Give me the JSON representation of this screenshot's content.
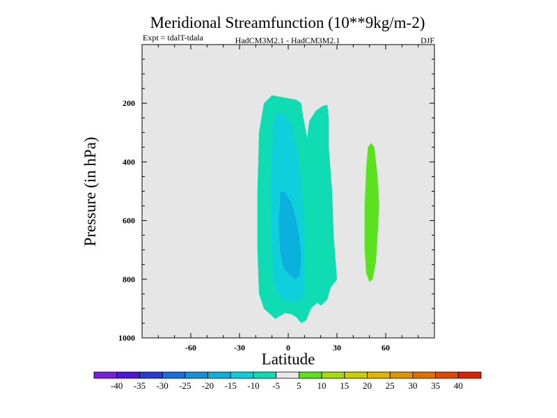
{
  "chart_data": {
    "type": "contour",
    "title": "Meridional Streamfunction (10**9kg/m-2)",
    "subtitle_left": "Expt = tdalT-tdala",
    "subtitle_center": "HadCM3M2.1 - HadCM3M2.1",
    "subtitle_right": "DJF",
    "xlabel": "Latitude",
    "ylabel": "Pressure (in hPa)",
    "xlim": [
      -90,
      90
    ],
    "ylim": [
      1000,
      0
    ],
    "xticks": [
      -60,
      -30,
      0,
      30,
      60
    ],
    "yticks": [
      200,
      400,
      600,
      800,
      1000
    ],
    "background": "#e6e6e6",
    "colorbar": {
      "labels": [
        "-40",
        "-35",
        "-30",
        "-25",
        "-20",
        "-15",
        "-10",
        "-5",
        "5",
        "10",
        "15",
        "20",
        "25",
        "30",
        "35",
        "40"
      ],
      "colors": [
        "#7a1ee0",
        "#4a18d8",
        "#2a3ad8",
        "#1a6edc",
        "#1490dc",
        "#0cb0dc",
        "#10cfdc",
        "#10dcb4",
        "#e8e8e8",
        "#5ae21e",
        "#a0dc10",
        "#cccc00",
        "#e0b400",
        "#e09400",
        "#e07000",
        "#e04800",
        "#dc2000"
      ]
    },
    "regions": [
      {
        "level": "-10 to -5",
        "color": "#10dcb4",
        "points": [
          [
            -10,
            173
          ],
          [
            -5,
            178
          ],
          [
            5,
            188
          ],
          [
            8,
            200
          ],
          [
            9,
            240
          ],
          [
            10,
            270
          ],
          [
            11,
            300
          ],
          [
            12,
            320
          ],
          [
            12,
            300
          ],
          [
            13,
            260
          ],
          [
            17,
            225
          ],
          [
            21,
            210
          ],
          [
            24,
            205
          ],
          [
            25,
            250
          ],
          [
            25,
            350
          ],
          [
            27,
            500
          ],
          [
            28,
            650
          ],
          [
            30,
            800
          ],
          [
            26,
            830
          ],
          [
            24,
            870
          ],
          [
            20,
            890
          ],
          [
            18,
            880
          ],
          [
            14,
            900
          ],
          [
            11,
            940
          ],
          [
            8,
            950
          ],
          [
            5,
            930
          ],
          [
            2,
            920
          ],
          [
            -2,
            915
          ],
          [
            -8,
            935
          ],
          [
            -15,
            900
          ],
          [
            -18,
            850
          ],
          [
            -19,
            700
          ],
          [
            -19,
            500
          ],
          [
            -18,
            300
          ],
          [
            -15,
            200
          ]
        ]
      },
      {
        "level": "-15 to -10",
        "color": "#10cfdc",
        "points": [
          [
            -7,
            230
          ],
          [
            -2,
            240
          ],
          [
            2,
            270
          ],
          [
            5,
            350
          ],
          [
            8,
            450
          ],
          [
            9,
            550
          ],
          [
            10,
            650
          ],
          [
            10,
            750
          ],
          [
            10,
            850
          ],
          [
            6,
            880
          ],
          [
            0,
            875
          ],
          [
            -5,
            860
          ],
          [
            -9,
            810
          ],
          [
            -10,
            700
          ],
          [
            -11,
            500
          ],
          [
            -10,
            350
          ],
          [
            -9,
            270
          ]
        ]
      },
      {
        "level": "-20 to -15",
        "color": "#0cb0dc",
        "points": [
          [
            -5,
            500
          ],
          [
            -2,
            505
          ],
          [
            2,
            540
          ],
          [
            5,
            600
          ],
          [
            7,
            660
          ],
          [
            8,
            720
          ],
          [
            7,
            790
          ],
          [
            4,
            800
          ],
          [
            0,
            780
          ],
          [
            -3,
            760
          ],
          [
            -5,
            700
          ],
          [
            -6,
            600
          ],
          [
            -5,
            540
          ]
        ]
      },
      {
        "level": "5 to 10",
        "color": "#5ae21e",
        "points": [
          [
            51,
            335
          ],
          [
            53,
            350
          ],
          [
            55,
            450
          ],
          [
            56,
            550
          ],
          [
            55,
            650
          ],
          [
            54,
            740
          ],
          [
            52,
            800
          ],
          [
            50,
            810
          ],
          [
            48,
            780
          ],
          [
            47,
            700
          ],
          [
            47,
            550
          ],
          [
            48,
            420
          ],
          [
            49,
            350
          ]
        ]
      }
    ]
  }
}
